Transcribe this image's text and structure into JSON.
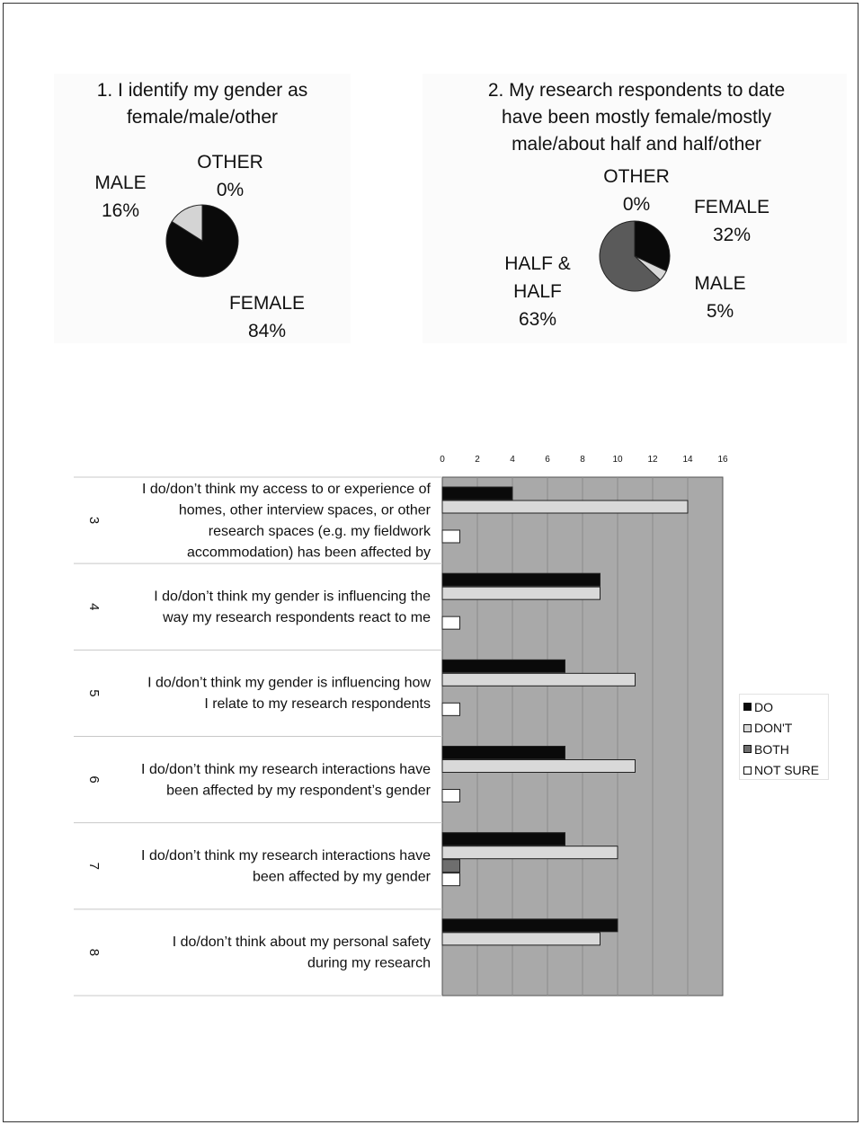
{
  "chart_data": [
    {
      "type": "pie",
      "title": "1. I identify my gender as female/male/other",
      "title_lines": [
        "1. I identify my gender as",
        "female/male/other"
      ],
      "slices": [
        {
          "label": "FEMALE",
          "value": 84,
          "value_label": "84%",
          "color": "#0a0a0a"
        },
        {
          "label": "MALE",
          "value": 16,
          "value_label": "16%",
          "color": "#d4d4d4"
        },
        {
          "label": "OTHER",
          "value": 0,
          "value_label": "0%",
          "color": "#888888"
        }
      ]
    },
    {
      "type": "pie",
      "title": "2. My research respondents to date have been mostly female/mostly male/about half and half/other",
      "title_lines": [
        "2. My research respondents to date",
        "have been mostly female/mostly",
        "male/about half and half/other"
      ],
      "slices": [
        {
          "label": "FEMALE",
          "value": 32,
          "value_label": "32%",
          "color": "#0a0a0a"
        },
        {
          "label": "MALE",
          "value": 5,
          "value_label": "5%",
          "color": "#d9d9d9"
        },
        {
          "label": "HALF & HALF",
          "label_lines": [
            "HALF &",
            "HALF"
          ],
          "value": 63,
          "value_label": "63%",
          "color": "#5a5a5a"
        },
        {
          "label": "OTHER",
          "value": 0,
          "value_label": "0%",
          "color": "#ffffff"
        }
      ]
    },
    {
      "type": "bar",
      "orientation": "horizontal",
      "xlim": [
        0,
        16
      ],
      "xticks": [
        "0",
        "2",
        "4",
        "6",
        "8",
        "10",
        "12",
        "14",
        "16"
      ],
      "grid": true,
      "legend_position": "right",
      "series": [
        {
          "name": "DO",
          "color": "#0a0a0a"
        },
        {
          "name": "DON'T",
          "color": "#d9d9d9"
        },
        {
          "name": "BOTH",
          "color": "#6e6e6e"
        },
        {
          "name": "NOT SURE",
          "color": "#ffffff"
        }
      ],
      "categories": [
        {
          "num": "3",
          "lines": [
            "I do/don’t think my access to or experience of",
            "homes, other interview spaces, or other",
            "research spaces (e.g. my fieldwork",
            "accommodation) has been affected by"
          ],
          "bars": [
            {
              "series": "DO",
              "value": 4
            },
            {
              "series": "DON'T",
              "value": 14
            },
            {
              "series": "NOT SURE",
              "value": 1
            }
          ]
        },
        {
          "num": "4",
          "lines": [
            "I do/don’t think my gender is influencing the",
            "way my research respondents react to me"
          ],
          "bars": [
            {
              "series": "DO",
              "value": 9
            },
            {
              "series": "DON'T",
              "value": 9
            },
            {
              "series": "NOT SURE",
              "value": 1
            }
          ]
        },
        {
          "num": "5",
          "lines": [
            "I do/don’t think my gender is influencing how",
            "I relate to my research respondents"
          ],
          "bars": [
            {
              "series": "DO",
              "value": 7
            },
            {
              "series": "DON'T",
              "value": 11
            },
            {
              "series": "NOT SURE",
              "value": 1
            }
          ]
        },
        {
          "num": "6",
          "lines": [
            "I do/don’t think my research interactions have",
            "been affected by my respondent’s gender"
          ],
          "bars": [
            {
              "series": "DO",
              "value": 7
            },
            {
              "series": "DON'T",
              "value": 11
            },
            {
              "series": "NOT SURE",
              "value": 1
            }
          ]
        },
        {
          "num": "7",
          "lines": [
            "I do/don’t think my research interactions have",
            "been affected by my gender"
          ],
          "bars": [
            {
              "series": "DO",
              "value": 7
            },
            {
              "series": "DON'T",
              "value": 10
            },
            {
              "series": "BOTH",
              "value": 1
            },
            {
              "series": "NOT SURE",
              "value": 1
            }
          ]
        },
        {
          "num": "8",
          "lines": [
            "I do/don’t think about my personal safety",
            "during my research"
          ],
          "bars": [
            {
              "series": "DO",
              "value": 10
            },
            {
              "series": "DON'T",
              "value": 9
            }
          ]
        }
      ]
    }
  ]
}
